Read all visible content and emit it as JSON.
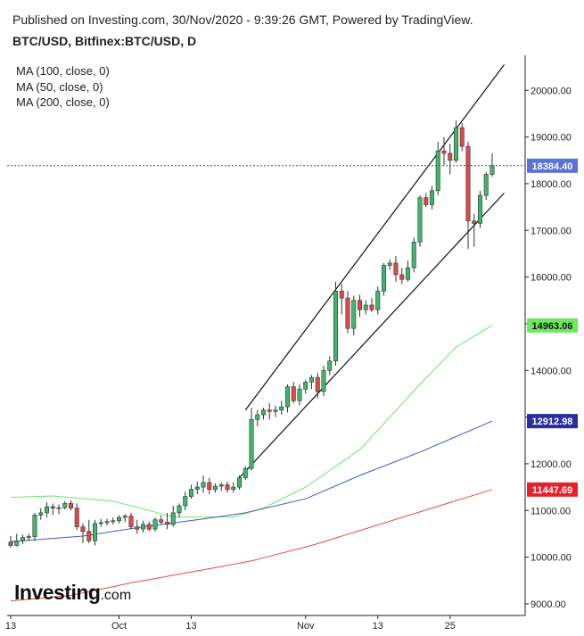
{
  "header": {
    "published": "Published on Investing.com, 30/Nov/2020 - 9:39:26 GMT, Powered by TradingView.",
    "symbol": "BTC/USD, Bitfinex:BTC/USD, D"
  },
  "legend": {
    "ma100": "MA (100, close, 0)",
    "ma50": "MA (50, close, 0)",
    "ma200": "MA (200, close, 0)"
  },
  "logo": {
    "main": "Investing",
    "domain": ".com"
  },
  "colors": {
    "bull": "#3fb86b",
    "bear": "#e0494c",
    "ma50": "#6be86b",
    "ma100": "#4a55c8",
    "ma200": "#ee4a3f",
    "last_price_tag": "#5b72d8",
    "ma50_tag": "#6ee85e",
    "ma100_tag": "#2c2ea0",
    "ma200_tag": "#e8202a"
  },
  "chart_data": {
    "type": "candlestick",
    "title": "BTC/USD, Bitfinex:BTC/USD, D",
    "ylim": [
      8750,
      20750
    ],
    "y_ticks": [
      9000,
      10000,
      11000,
      12000,
      13000,
      14000,
      15000,
      16000,
      17000,
      18000,
      19000,
      20000
    ],
    "y_tick_labels": [
      "9000.00",
      "10000.00",
      "11000.00",
      "12000.00",
      "13000.00",
      "14000.00",
      "15000.00",
      "16000.00",
      "17000.00",
      "18000.00",
      "19000.00",
      "20000.00"
    ],
    "x_tick_labels": [
      {
        "label": "13",
        "date": "2020-09-13"
      },
      {
        "label": "Oct",
        "date": "2020-10-01"
      },
      {
        "label": "13",
        "date": "2020-10-13"
      },
      {
        "label": "Nov",
        "date": "2020-11-01"
      },
      {
        "label": "13",
        "date": "2020-11-13"
      },
      {
        "label": "25",
        "date": "2020-11-25"
      }
    ],
    "last_price": 18384.4,
    "price_tags": [
      {
        "label": "18384.40",
        "value": 18384.4,
        "kind": "last"
      },
      {
        "label": "14963.06",
        "value": 14963.06,
        "kind": "ma50"
      },
      {
        "label": "12912.98",
        "value": 12912.98,
        "kind": "ma100"
      },
      {
        "label": "11447.69",
        "value": 11447.69,
        "kind": "ma200"
      }
    ],
    "candles": [
      {
        "date": "2020-09-13",
        "o": 10320,
        "h": 10450,
        "l": 10200,
        "c": 10250
      },
      {
        "date": "2020-09-14",
        "o": 10250,
        "h": 10500,
        "l": 10230,
        "c": 10350
      },
      {
        "date": "2020-09-15",
        "o": 10350,
        "h": 10480,
        "l": 10280,
        "c": 10420
      },
      {
        "date": "2020-09-16",
        "o": 10420,
        "h": 10500,
        "l": 10350,
        "c": 10440
      },
      {
        "date": "2020-09-17",
        "o": 10440,
        "h": 10950,
        "l": 10350,
        "c": 10900
      },
      {
        "date": "2020-09-18",
        "o": 10900,
        "h": 11050,
        "l": 10800,
        "c": 10950
      },
      {
        "date": "2020-09-19",
        "o": 10950,
        "h": 11180,
        "l": 10850,
        "c": 11080
      },
      {
        "date": "2020-09-20",
        "o": 11080,
        "h": 11150,
        "l": 10900,
        "c": 11050
      },
      {
        "date": "2020-09-21",
        "o": 11050,
        "h": 11130,
        "l": 10920,
        "c": 11060
      },
      {
        "date": "2020-09-22",
        "o": 11060,
        "h": 11200,
        "l": 11020,
        "c": 11150
      },
      {
        "date": "2020-09-23",
        "o": 11150,
        "h": 11220,
        "l": 11000,
        "c": 11050
      },
      {
        "date": "2020-09-24",
        "o": 11050,
        "h": 11150,
        "l": 10580,
        "c": 10650
      },
      {
        "date": "2020-09-25",
        "o": 10650,
        "h": 10720,
        "l": 10300,
        "c": 10550
      },
      {
        "date": "2020-09-26",
        "o": 10550,
        "h": 10800,
        "l": 10300,
        "c": 10350
      },
      {
        "date": "2020-09-27",
        "o": 10350,
        "h": 10800,
        "l": 10250,
        "c": 10720
      },
      {
        "date": "2020-09-28",
        "o": 10720,
        "h": 10820,
        "l": 10650,
        "c": 10740
      },
      {
        "date": "2020-09-29",
        "o": 10740,
        "h": 10820,
        "l": 10680,
        "c": 10760
      },
      {
        "date": "2020-09-30",
        "o": 10760,
        "h": 10850,
        "l": 10700,
        "c": 10780
      },
      {
        "date": "2020-10-01",
        "o": 10780,
        "h": 10900,
        "l": 10720,
        "c": 10850
      },
      {
        "date": "2020-10-02",
        "o": 10850,
        "h": 10920,
        "l": 10750,
        "c": 10880
      },
      {
        "date": "2020-10-03",
        "o": 10880,
        "h": 10950,
        "l": 10600,
        "c": 10650
      },
      {
        "date": "2020-10-04",
        "o": 10650,
        "h": 10800,
        "l": 10500,
        "c": 10600
      },
      {
        "date": "2020-10-05",
        "o": 10600,
        "h": 10780,
        "l": 10530,
        "c": 10700
      },
      {
        "date": "2020-10-06",
        "o": 10700,
        "h": 10760,
        "l": 10560,
        "c": 10600
      },
      {
        "date": "2020-10-07",
        "o": 10600,
        "h": 10850,
        "l": 10550,
        "c": 10800
      },
      {
        "date": "2020-10-08",
        "o": 10800,
        "h": 10900,
        "l": 10700,
        "c": 10750
      },
      {
        "date": "2020-10-09",
        "o": 10750,
        "h": 10950,
        "l": 10600,
        "c": 10700
      },
      {
        "date": "2020-10-10",
        "o": 10700,
        "h": 11100,
        "l": 10650,
        "c": 10950
      },
      {
        "date": "2020-10-11",
        "o": 10950,
        "h": 11150,
        "l": 10850,
        "c": 11100
      },
      {
        "date": "2020-10-12",
        "o": 11100,
        "h": 11400,
        "l": 11000,
        "c": 11300
      },
      {
        "date": "2020-10-13",
        "o": 11300,
        "h": 11550,
        "l": 11250,
        "c": 11450
      },
      {
        "date": "2020-10-14",
        "o": 11450,
        "h": 11620,
        "l": 11350,
        "c": 11500
      },
      {
        "date": "2020-10-15",
        "o": 11500,
        "h": 11750,
        "l": 11380,
        "c": 11600
      },
      {
        "date": "2020-10-16",
        "o": 11600,
        "h": 11700,
        "l": 11350,
        "c": 11450
      },
      {
        "date": "2020-10-17",
        "o": 11450,
        "h": 11580,
        "l": 11380,
        "c": 11520
      },
      {
        "date": "2020-10-18",
        "o": 11520,
        "h": 11600,
        "l": 11420,
        "c": 11550
      },
      {
        "date": "2020-10-19",
        "o": 11550,
        "h": 11620,
        "l": 11380,
        "c": 11450
      },
      {
        "date": "2020-10-20",
        "o": 11450,
        "h": 11600,
        "l": 11380,
        "c": 11500
      },
      {
        "date": "2020-10-21",
        "o": 11500,
        "h": 11750,
        "l": 11450,
        "c": 11700
      },
      {
        "date": "2020-10-22",
        "o": 11700,
        "h": 11950,
        "l": 11650,
        "c": 11900
      },
      {
        "date": "2020-10-23",
        "o": 11900,
        "h": 13200,
        "l": 11850,
        "c": 12950
      },
      {
        "date": "2020-10-24",
        "o": 12950,
        "h": 13150,
        "l": 12800,
        "c": 13050
      },
      {
        "date": "2020-10-25",
        "o": 13050,
        "h": 13200,
        "l": 12950,
        "c": 13150
      },
      {
        "date": "2020-10-26",
        "o": 13150,
        "h": 13300,
        "l": 12950,
        "c": 13120
      },
      {
        "date": "2020-10-27",
        "o": 13120,
        "h": 13250,
        "l": 13000,
        "c": 13150
      },
      {
        "date": "2020-10-28",
        "o": 13150,
        "h": 13350,
        "l": 13050,
        "c": 13220
      },
      {
        "date": "2020-10-29",
        "o": 13220,
        "h": 13700,
        "l": 13100,
        "c": 13650
      },
      {
        "date": "2020-10-30",
        "o": 13650,
        "h": 13750,
        "l": 13300,
        "c": 13350
      },
      {
        "date": "2020-10-31",
        "o": 13350,
        "h": 13700,
        "l": 13250,
        "c": 13600
      },
      {
        "date": "2020-11-01",
        "o": 13600,
        "h": 13800,
        "l": 13500,
        "c": 13750
      },
      {
        "date": "2020-11-02",
        "o": 13750,
        "h": 13900,
        "l": 13600,
        "c": 13850
      },
      {
        "date": "2020-11-03",
        "o": 13850,
        "h": 13950,
        "l": 13400,
        "c": 13550
      },
      {
        "date": "2020-11-04",
        "o": 13550,
        "h": 14100,
        "l": 13450,
        "c": 14000
      },
      {
        "date": "2020-11-05",
        "o": 14000,
        "h": 14300,
        "l": 13900,
        "c": 14200
      },
      {
        "date": "2020-11-06",
        "o": 14200,
        "h": 15900,
        "l": 14100,
        "c": 15700
      },
      {
        "date": "2020-11-07",
        "o": 15700,
        "h": 15850,
        "l": 15200,
        "c": 15550
      },
      {
        "date": "2020-11-08",
        "o": 15550,
        "h": 15700,
        "l": 14800,
        "c": 14900
      },
      {
        "date": "2020-11-09",
        "o": 14900,
        "h": 15600,
        "l": 14750,
        "c": 15500
      },
      {
        "date": "2020-11-10",
        "o": 15500,
        "h": 15620,
        "l": 15150,
        "c": 15300
      },
      {
        "date": "2020-11-11",
        "o": 15300,
        "h": 15500,
        "l": 15200,
        "c": 15400
      },
      {
        "date": "2020-11-12",
        "o": 15400,
        "h": 15550,
        "l": 15250,
        "c": 15300
      },
      {
        "date": "2020-11-13",
        "o": 15300,
        "h": 15800,
        "l": 15200,
        "c": 15700
      },
      {
        "date": "2020-11-14",
        "o": 15700,
        "h": 16300,
        "l": 15600,
        "c": 16250
      },
      {
        "date": "2020-11-15",
        "o": 16250,
        "h": 16380,
        "l": 16150,
        "c": 16300
      },
      {
        "date": "2020-11-16",
        "o": 16300,
        "h": 16450,
        "l": 15900,
        "c": 16050
      },
      {
        "date": "2020-11-17",
        "o": 16050,
        "h": 16200,
        "l": 15850,
        "c": 15950
      },
      {
        "date": "2020-11-18",
        "o": 15950,
        "h": 16350,
        "l": 15900,
        "c": 16200
      },
      {
        "date": "2020-11-19",
        "o": 16200,
        "h": 16850,
        "l": 16100,
        "c": 16750
      },
      {
        "date": "2020-11-20",
        "o": 16750,
        "h": 17750,
        "l": 16650,
        "c": 17700
      },
      {
        "date": "2020-11-21",
        "o": 17700,
        "h": 17800,
        "l": 17500,
        "c": 17550
      },
      {
        "date": "2020-11-22",
        "o": 17550,
        "h": 17950,
        "l": 17450,
        "c": 17850
      },
      {
        "date": "2020-11-23",
        "o": 17850,
        "h": 18900,
        "l": 17750,
        "c": 18700
      },
      {
        "date": "2020-11-24",
        "o": 18700,
        "h": 19000,
        "l": 18400,
        "c": 18650
      },
      {
        "date": "2020-11-25",
        "o": 18650,
        "h": 18850,
        "l": 18200,
        "c": 18500
      },
      {
        "date": "2020-11-26",
        "o": 18500,
        "h": 19350,
        "l": 18450,
        "c": 19200
      },
      {
        "date": "2020-11-27",
        "o": 19200,
        "h": 19300,
        "l": 18700,
        "c": 18800
      },
      {
        "date": "2020-11-28",
        "o": 18800,
        "h": 18900,
        "l": 16600,
        "c": 17200
      },
      {
        "date": "2020-11-29",
        "o": 17200,
        "h": 17350,
        "l": 16650,
        "c": 17150
      },
      {
        "date": "2020-11-30",
        "o": 17150,
        "h": 17850,
        "l": 17050,
        "c": 17750
      },
      {
        "date": "2020-12-01",
        "o": 17750,
        "h": 18250,
        "l": 17650,
        "c": 18200
      },
      {
        "date": "2020-12-02",
        "o": 18200,
        "h": 18650,
        "l": 18150,
        "c": 18384.4
      }
    ],
    "ma_series": [
      {
        "name": "MA (50, close, 0)",
        "color": "#6be86b",
        "points": [
          {
            "date": "2020-09-13",
            "v": 11280
          },
          {
            "date": "2020-09-20",
            "v": 11310
          },
          {
            "date": "2020-09-30",
            "v": 11200
          },
          {
            "date": "2020-10-06",
            "v": 11000
          },
          {
            "date": "2020-10-10",
            "v": 10860
          },
          {
            "date": "2020-10-20",
            "v": 10860
          },
          {
            "date": "2020-10-25",
            "v": 11050
          },
          {
            "date": "2020-11-01",
            "v": 11500
          },
          {
            "date": "2020-11-10",
            "v": 12300
          },
          {
            "date": "2020-11-20",
            "v": 13700
          },
          {
            "date": "2020-11-26",
            "v": 14500
          },
          {
            "date": "2020-12-02",
            "v": 14963.06
          }
        ]
      },
      {
        "name": "MA (100, close, 0)",
        "color": "#4a55c8",
        "points": [
          {
            "date": "2020-09-13",
            "v": 10330
          },
          {
            "date": "2020-09-25",
            "v": 10450
          },
          {
            "date": "2020-10-05",
            "v": 10650
          },
          {
            "date": "2020-10-15",
            "v": 10820
          },
          {
            "date": "2020-10-22",
            "v": 10950
          },
          {
            "date": "2020-11-01",
            "v": 11250
          },
          {
            "date": "2020-11-10",
            "v": 11750
          },
          {
            "date": "2020-11-20",
            "v": 12250
          },
          {
            "date": "2020-12-02",
            "v": 12912.98
          }
        ]
      },
      {
        "name": "MA (200, close, 0)",
        "color": "#ee4a3f",
        "points": [
          {
            "date": "2020-09-13",
            "v": 9060
          },
          {
            "date": "2020-09-23",
            "v": 9180
          },
          {
            "date": "2020-10-03",
            "v": 9450
          },
          {
            "date": "2020-10-13",
            "v": 9680
          },
          {
            "date": "2020-10-23",
            "v": 9920
          },
          {
            "date": "2020-11-02",
            "v": 10250
          },
          {
            "date": "2020-11-12",
            "v": 10650
          },
          {
            "date": "2020-11-22",
            "v": 11050
          },
          {
            "date": "2020-12-02",
            "v": 11447.69
          }
        ]
      }
    ],
    "trendlines": [
      {
        "from": {
          "date": "2020-10-22",
          "v": 13150
        },
        "to": {
          "date": "2020-12-04",
          "v": 20550
        }
      },
      {
        "from": {
          "date": "2020-10-21",
          "v": 11700
        },
        "to": {
          "date": "2020-12-04",
          "v": 17800
        }
      }
    ]
  }
}
